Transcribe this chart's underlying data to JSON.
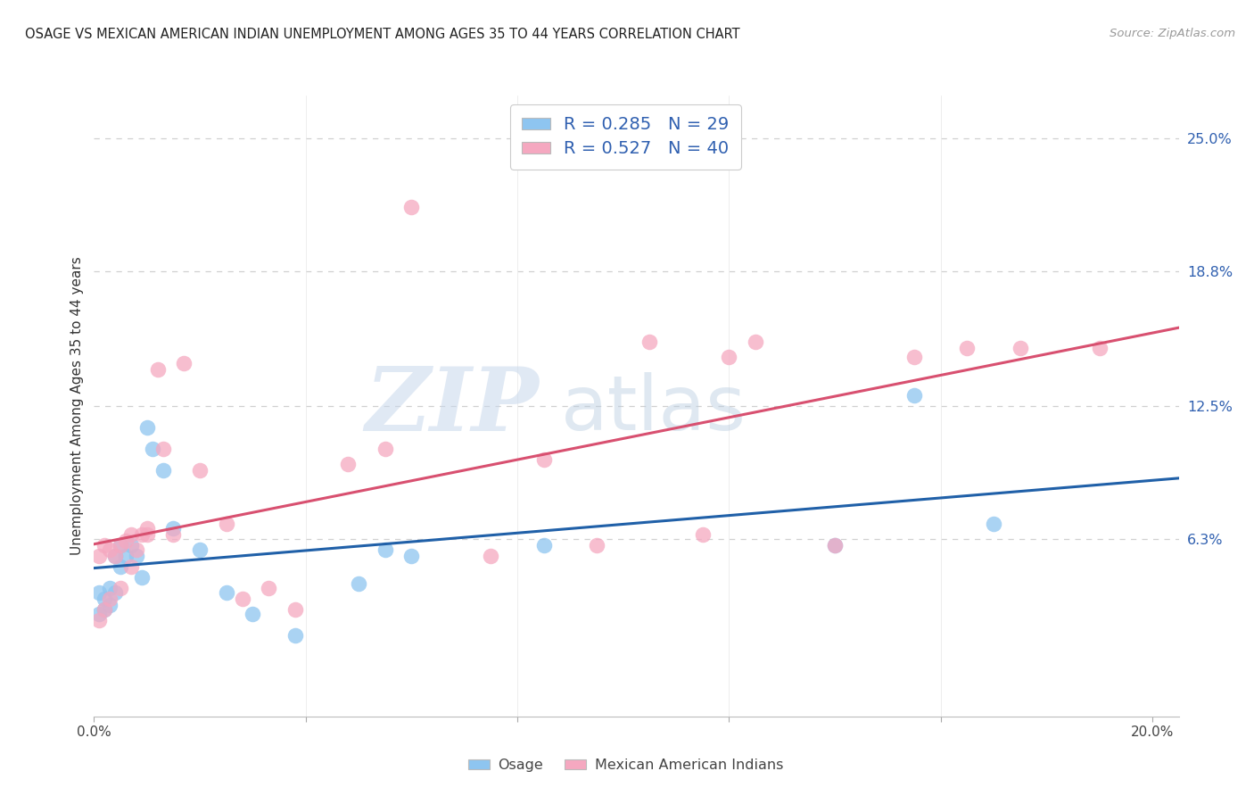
{
  "title": "OSAGE VS MEXICAN AMERICAN INDIAN UNEMPLOYMENT AMONG AGES 35 TO 44 YEARS CORRELATION CHART",
  "source": "Source: ZipAtlas.com",
  "ylabel": "Unemployment Among Ages 35 to 44 years",
  "xlim": [
    0.0,
    0.205
  ],
  "ylim": [
    -0.02,
    0.27
  ],
  "xticks": [
    0.0,
    0.04,
    0.08,
    0.12,
    0.16,
    0.2
  ],
  "xticklabels": [
    "0.0%",
    "",
    "",
    "",
    "",
    "20.0%"
  ],
  "yticks_right": [
    0.063,
    0.125,
    0.188,
    0.25
  ],
  "yticklabels_right": [
    "6.3%",
    "12.5%",
    "18.8%",
    "25.0%"
  ],
  "legend_labels": [
    "Osage",
    "Mexican American Indians"
  ],
  "blue_color": "#8EC5F0",
  "pink_color": "#F5A8C0",
  "blue_line_color": "#2060A8",
  "pink_line_color": "#D85070",
  "R_blue": "0.285",
  "N_blue": "29",
  "R_pink": "0.527",
  "N_pink": "40",
  "background_color": "#ffffff",
  "grid_color": "#d0d0d0",
  "osage_x": [
    0.001,
    0.001,
    0.002,
    0.002,
    0.003,
    0.003,
    0.004,
    0.004,
    0.005,
    0.005,
    0.006,
    0.007,
    0.008,
    0.009,
    0.01,
    0.011,
    0.013,
    0.015,
    0.02,
    0.025,
    0.03,
    0.038,
    0.05,
    0.055,
    0.06,
    0.085,
    0.14,
    0.155,
    0.17
  ],
  "osage_y": [
    0.028,
    0.038,
    0.03,
    0.035,
    0.032,
    0.04,
    0.038,
    0.055,
    0.06,
    0.05,
    0.055,
    0.06,
    0.055,
    0.045,
    0.115,
    0.105,
    0.095,
    0.068,
    0.058,
    0.038,
    0.028,
    0.018,
    0.042,
    0.058,
    0.055,
    0.06,
    0.06,
    0.13,
    0.07
  ],
  "mex_x": [
    0.001,
    0.001,
    0.002,
    0.002,
    0.003,
    0.003,
    0.004,
    0.005,
    0.005,
    0.006,
    0.007,
    0.007,
    0.008,
    0.009,
    0.01,
    0.01,
    0.012,
    0.013,
    0.015,
    0.017,
    0.02,
    0.025,
    0.028,
    0.033,
    0.038,
    0.048,
    0.055,
    0.06,
    0.075,
    0.085,
    0.095,
    0.105,
    0.115,
    0.12,
    0.125,
    0.14,
    0.155,
    0.165,
    0.175,
    0.19
  ],
  "mex_y": [
    0.025,
    0.055,
    0.03,
    0.06,
    0.035,
    0.058,
    0.055,
    0.06,
    0.04,
    0.062,
    0.05,
    0.065,
    0.058,
    0.065,
    0.065,
    0.068,
    0.142,
    0.105,
    0.065,
    0.145,
    0.095,
    0.07,
    0.035,
    0.04,
    0.03,
    0.098,
    0.105,
    0.218,
    0.055,
    0.1,
    0.06,
    0.155,
    0.065,
    0.148,
    0.155,
    0.06,
    0.148,
    0.152,
    0.152,
    0.152
  ]
}
